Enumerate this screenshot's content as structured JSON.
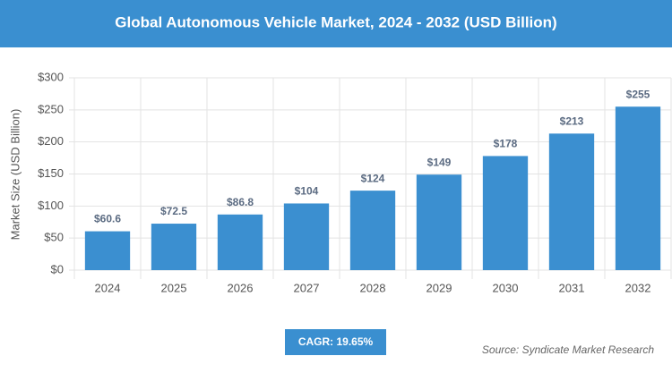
{
  "chart_data": {
    "type": "bar",
    "title": "Global Autonomous Vehicle Market, 2024 - 2032 (USD Billion)",
    "y_label": "Market Size (USD Billion)",
    "categories": [
      "2024",
      "2025",
      "2026",
      "2027",
      "2028",
      "2029",
      "2030",
      "2031",
      "2032"
    ],
    "values": [
      60.6,
      72.5,
      86.8,
      104,
      124,
      149,
      178,
      213,
      255
    ],
    "value_labels": [
      "$60.6",
      "$72.5",
      "$86.8",
      "$104",
      "$124",
      "$149",
      "$178",
      "$213",
      "$255"
    ],
    "color": "#3b8fd0",
    "ylim": [
      0,
      300
    ],
    "yticks": [
      {
        "value": 0,
        "label": "$0"
      },
      {
        "value": 50,
        "label": "$50"
      },
      {
        "value": 100,
        "label": "$100"
      },
      {
        "value": 150,
        "label": "$150"
      },
      {
        "value": 200,
        "label": "$200"
      },
      {
        "value": 250,
        "label": "$250"
      },
      {
        "value": 300,
        "label": "$300"
      }
    ],
    "grid": true,
    "annotation": "CAGR: 19.65%",
    "source": "Source: Syndicate Market Research"
  }
}
